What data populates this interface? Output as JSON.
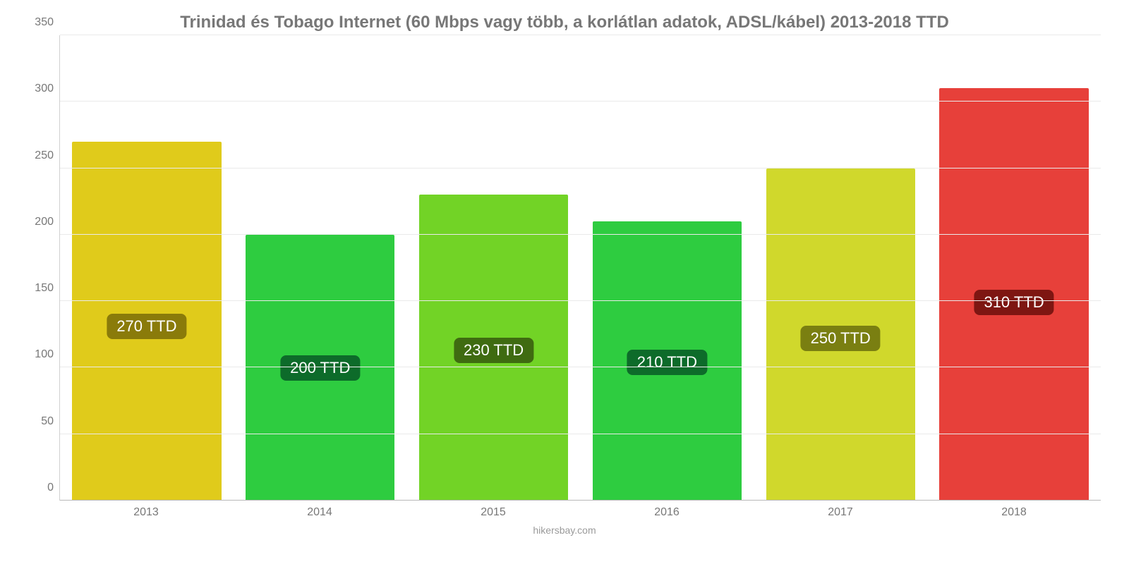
{
  "chart": {
    "type": "bar",
    "title": "Trinidad és Tobago Internet (60 Mbps vagy több, a korlátlan adatok, ADSL/kábel) 2013-2018 TTD",
    "title_color": "#777777",
    "title_fontsize": 24,
    "background_color": "#ffffff",
    "grid_color": "#eaeaea",
    "axis_line_color": "#d0d0d0",
    "baseline_color": "#b8b8b8",
    "tick_label_color": "#777777",
    "tick_label_fontsize": 16,
    "value_label_fontsize": 22,
    "ylim": [
      0,
      350
    ],
    "ytick_step": 50,
    "yticks": [
      0,
      50,
      100,
      150,
      200,
      250,
      300,
      350
    ],
    "bar_width_pct": 86,
    "categories": [
      "2013",
      "2014",
      "2015",
      "2016",
      "2017",
      "2018"
    ],
    "series": [
      {
        "value": 270,
        "label": "270 TTD",
        "bar_color": "#e0cb1b",
        "badge_bg": "#8a7b0a"
      },
      {
        "value": 200,
        "label": "200 TTD",
        "bar_color": "#2ecc40",
        "badge_bg": "#0d6b2a"
      },
      {
        "value": 230,
        "label": "230 TTD",
        "bar_color": "#72d326",
        "badge_bg": "#3f6b11"
      },
      {
        "value": 210,
        "label": "210 TTD",
        "bar_color": "#2ecc40",
        "badge_bg": "#0d6b2a"
      },
      {
        "value": 250,
        "label": "250 TTD",
        "bar_color": "#d0d82c",
        "badge_bg": "#7a7f11"
      },
      {
        "value": 310,
        "label": "310 TTD",
        "bar_color": "#e7403a",
        "badge_bg": "#7e1612"
      }
    ],
    "attribution": "hikersbay.com",
    "attribution_color": "#9a9a9a"
  }
}
